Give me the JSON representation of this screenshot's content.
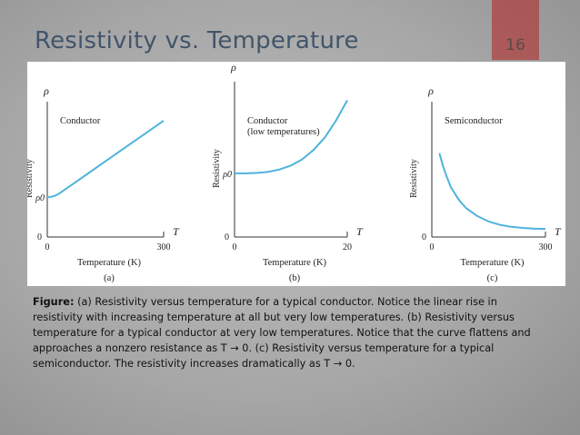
{
  "slide": {
    "title": "Resistivity vs. Temperature",
    "number": "16",
    "accent_color": "#b51f1f",
    "title_color": "#42556b"
  },
  "caption": {
    "label": "Figure:",
    "text": "(a) Resistivity versus temperature for a typical conductor. Notice the linear rise in resistivity with increasing temperature at all but very low temperatures. (b) Resistivity versus temperature for a typical conductor at very low temperatures. Notice that the curve flattens and approaches a nonzero resistance as T → 0. (c) Resistivity versus temperature for a typical semiconductor. The resistivity increases dramatically as T → 0."
  },
  "curve_color": "#4fb3dc",
  "chart_data": [
    {
      "type": "line",
      "panel_label": "(a)",
      "title": "Conductor",
      "ylabel": "Resistivity",
      "yaxis_symbol": "ρ",
      "y_marker": "ρ0",
      "y_origin_tick": "0",
      "xlabel": "Temperature (K)",
      "xaxis_symbol": "T",
      "x_ticks": [
        "0",
        "300"
      ],
      "xlim": [
        0,
        300
      ],
      "ylim": [
        0,
        1.0
      ],
      "series": [
        {
          "name": "Conductor",
          "x": [
            0,
            10,
            20,
            30,
            40,
            60,
            100,
            150,
            200,
            250,
            300
          ],
          "y": [
            0.295,
            0.297,
            0.305,
            0.32,
            0.34,
            0.38,
            0.46,
            0.56,
            0.66,
            0.76,
            0.86
          ]
        }
      ]
    },
    {
      "type": "line",
      "panel_label": "(b)",
      "title": "Conductor",
      "subtitle": "(low temperatures)",
      "ylabel": "Resistivity",
      "yaxis_symbol": "ρ",
      "y_marker": "ρ0",
      "y_origin_tick": "0",
      "xlabel": "Temperature (K)",
      "xaxis_symbol": "T",
      "x_ticks": [
        "0",
        "20"
      ],
      "xlim": [
        0,
        20
      ],
      "ylim": [
        0,
        1.0
      ],
      "series": [
        {
          "name": "Conductor (low T)",
          "x": [
            0,
            2,
            4,
            6,
            8,
            10,
            12,
            14,
            16,
            18,
            20
          ],
          "y": [
            0.41,
            0.41,
            0.413,
            0.42,
            0.435,
            0.46,
            0.5,
            0.56,
            0.64,
            0.75,
            0.88
          ]
        }
      ]
    },
    {
      "type": "line",
      "panel_label": "(c)",
      "title": "Semiconductor",
      "ylabel": "Resistivity",
      "yaxis_symbol": "ρ",
      "y_origin_tick": "0",
      "xlabel": "Temperature (K)",
      "xaxis_symbol": "T",
      "x_ticks": [
        "0",
        "300"
      ],
      "xlim": [
        0,
        300
      ],
      "ylim": [
        0,
        1.0
      ],
      "series": [
        {
          "name": "Semiconductor",
          "x": [
            20,
            30,
            40,
            50,
            70,
            90,
            120,
            150,
            180,
            210,
            240,
            270,
            300
          ],
          "y": [
            0.62,
            0.52,
            0.44,
            0.37,
            0.28,
            0.215,
            0.155,
            0.115,
            0.09,
            0.075,
            0.067,
            0.062,
            0.06
          ]
        }
      ]
    }
  ]
}
